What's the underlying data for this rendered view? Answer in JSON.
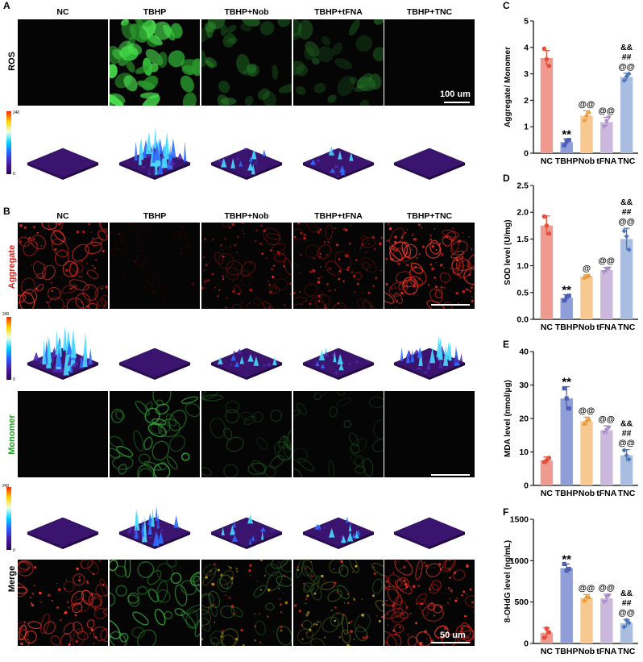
{
  "panels": {
    "A": "A",
    "B": "B",
    "C": "C",
    "D": "D",
    "E": "E",
    "F": "F"
  },
  "groups": [
    "NC",
    "TBHP",
    "TBHP+Nob",
    "TBHP+tFNA",
    "TBHP+TNC"
  ],
  "rows": {
    "ros": "ROS",
    "aggregate": "Aggregate",
    "monomer": "Monomer",
    "merge": "Merge"
  },
  "scalebars": {
    "a": "100 um",
    "b": "50 um"
  },
  "colorbar": {
    "max": "240",
    "min": "0"
  },
  "colors": {
    "NC": "#ef9a8f",
    "TBHP": "#8f9ed6",
    "Nob": "#f7c88f",
    "tFNA": "#cdb8dd",
    "TNC": "#a9bde0",
    "NC_dot": "#e0523f",
    "TBHP_dot": "#4a5fb5",
    "Nob_dot": "#e99a3c",
    "tFNA_dot": "#a88ac7",
    "TNC_dot": "#4e76bd"
  },
  "chart_data": [
    {
      "panel": "C",
      "type": "bar",
      "categories": [
        "NC",
        "TBHP",
        "Nob",
        "tFNA",
        "TNC"
      ],
      "values": [
        3.6,
        0.42,
        1.42,
        1.18,
        2.88
      ],
      "errors": [
        0.28,
        0.12,
        0.18,
        0.18,
        0.14
      ],
      "points": [
        [
          3.95,
          3.55,
          3.3
        ],
        [
          0.3,
          0.45,
          0.5
        ],
        [
          1.25,
          1.45,
          1.55
        ],
        [
          1.0,
          1.2,
          1.35
        ],
        [
          2.75,
          2.9,
          3.0
        ]
      ],
      "ylabel": "Aggregate/ Monomer",
      "ylim": [
        0,
        5
      ],
      "yticks": [
        0,
        1,
        2,
        3,
        4,
        5
      ],
      "annotations": [
        [],
        [
          "**"
        ],
        [
          "@@"
        ],
        [
          "@@"
        ],
        [
          "&&",
          "##",
          "@@"
        ]
      ]
    },
    {
      "panel": "D",
      "type": "bar",
      "categories": [
        "NC",
        "TBHP",
        "Nob",
        "tFNA",
        "TNC"
      ],
      "values": [
        1.75,
        0.4,
        0.8,
        0.92,
        1.5
      ],
      "errors": [
        0.18,
        0.06,
        0.03,
        0.05,
        0.2
      ],
      "points": [
        [
          1.92,
          1.75,
          1.6
        ],
        [
          0.35,
          0.42,
          0.44
        ],
        [
          0.78,
          0.8,
          0.82
        ],
        [
          0.88,
          0.93,
          0.95
        ],
        [
          1.65,
          1.55,
          1.3
        ]
      ],
      "ylabel": "SOD level (U/mg)",
      "ylim": [
        0,
        2.5
      ],
      "yticks": [
        0.0,
        0.5,
        1.0,
        1.5,
        2.0,
        2.5
      ],
      "annotations": [
        [],
        [
          "**"
        ],
        [
          "@"
        ],
        [
          "@@"
        ],
        [
          "&&",
          "##",
          "@@"
        ]
      ]
    },
    {
      "panel": "E",
      "type": "bar",
      "categories": [
        "NC",
        "TBHP",
        "Nob",
        "tFNA",
        "TNC"
      ],
      "values": [
        7.5,
        26,
        19.2,
        16.5,
        9
      ],
      "errors": [
        1.0,
        3.5,
        1.2,
        1.3,
        1.7
      ],
      "points": [
        [
          7,
          7.5,
          8.2
        ],
        [
          29,
          26,
          23
        ],
        [
          18.5,
          19.5,
          19.8
        ],
        [
          15.8,
          16.5,
          17.3
        ],
        [
          10.5,
          9,
          7.8
        ]
      ],
      "ylabel": "MDA level (nmol/μg)",
      "ylim": [
        0,
        40
      ],
      "yticks": [
        0,
        10,
        20,
        30,
        40
      ],
      "annotations": [
        [],
        [
          "**"
        ],
        [
          "@@"
        ],
        [
          "@@"
        ],
        [
          "&&",
          "##",
          "@@"
        ]
      ]
    },
    {
      "panel": "F",
      "type": "bar",
      "categories": [
        "NC",
        "TBHP",
        "Nob",
        "tFNA",
        "TNC"
      ],
      "values": [
        130,
        910,
        550,
        545,
        245
      ],
      "errors": [
        60,
        50,
        40,
        50,
        45
      ],
      "points": [
        [
          70,
          180,
          135
        ],
        [
          960,
          880,
          900
        ],
        [
          520,
          570,
          560
        ],
        [
          500,
          560,
          580
        ],
        [
          200,
          280,
          250
        ]
      ],
      "ylabel": "8-OHdG level (ng/mL)",
      "ylim": [
        0,
        1500
      ],
      "yticks": [
        0,
        500,
        1000,
        1500
      ],
      "annotations": [
        [],
        [
          "**"
        ],
        [
          "@@"
        ],
        [
          "@@"
        ],
        [
          "&&",
          "##",
          "@@"
        ]
      ]
    }
  ]
}
